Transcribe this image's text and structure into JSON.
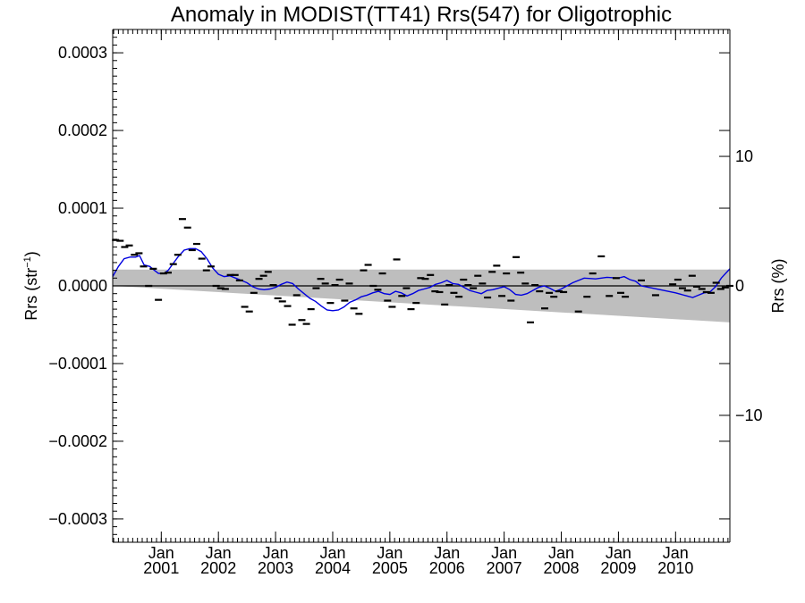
{
  "chart_data": {
    "type": "line",
    "title": "Anomaly in MODIST(TT41) Rrs(547) for Oligotrophic",
    "ylabel": "Rrs (str",
    "ylabel_sup": "−1",
    "ylabel_close": ")",
    "y2label": "Rrs (%)",
    "xlim": [
      2000.15,
      2010.95
    ],
    "ylim": [
      -0.00033,
      0.00033
    ],
    "y2lim": [
      -19.8,
      19.8
    ],
    "yticks": [
      {
        "value": 0.0003,
        "label": "0.0003"
      },
      {
        "value": 0.0002,
        "label": "0.0002"
      },
      {
        "value": 0.0001,
        "label": "0.0001"
      },
      {
        "value": 0.0,
        "label": "0.0000"
      },
      {
        "value": -0.0001,
        "label": "−0.0001"
      },
      {
        "value": -0.0002,
        "label": "−0.0002"
      },
      {
        "value": -0.0003,
        "label": "−0.0003"
      }
    ],
    "y2ticks": [
      {
        "value": 10,
        "label": "10"
      },
      {
        "value": 0,
        "label": "0"
      },
      {
        "value": -10,
        "label": "−10"
      }
    ],
    "xticks": [
      {
        "value": 2001.0,
        "month": "Jan",
        "year": "2001"
      },
      {
        "value": 2002.0,
        "month": "Jan",
        "year": "2002"
      },
      {
        "value": 2003.0,
        "month": "Jan",
        "year": "2003"
      },
      {
        "value": 2004.0,
        "month": "Jan",
        "year": "2004"
      },
      {
        "value": 2005.0,
        "month": "Jan",
        "year": "2005"
      },
      {
        "value": 2006.0,
        "month": "Jan",
        "year": "2006"
      },
      {
        "value": 2007.0,
        "month": "Jan",
        "year": "2007"
      },
      {
        "value": 2008.0,
        "month": "Jan",
        "year": "2008"
      },
      {
        "value": 2009.0,
        "month": "Jan",
        "year": "2009"
      },
      {
        "value": 2010.0,
        "month": "Jan",
        "year": "2010"
      }
    ],
    "band": {
      "x": [
        2000.15,
        2010.95
      ],
      "upper": [
        2.1e-05,
        2.1e-05
      ],
      "lower": [
        0.0,
        -4.7e-05
      ]
    },
    "zero_line": 0,
    "grid": false,
    "legend": "none",
    "colors": {
      "series": "#0000e0",
      "band": "#bebebe",
      "markers": "#000000"
    },
    "series": [
      {
        "type": "line",
        "x": [
          2000.15,
          2000.25,
          2000.35,
          2000.45,
          2000.55,
          2000.62,
          2000.7,
          2000.8,
          2000.88,
          2000.95,
          2001.05,
          2001.12,
          2001.2,
          2001.3,
          2001.4,
          2001.5,
          2001.6,
          2001.7,
          2001.8,
          2001.9,
          2002.0,
          2002.1,
          2002.2,
          2002.3,
          2002.4,
          2002.5,
          2002.6,
          2002.7,
          2002.8,
          2002.9,
          2003.0,
          2003.1,
          2003.2,
          2003.3,
          2003.4,
          2003.5,
          2003.6,
          2003.7,
          2003.8,
          2003.9,
          2004.0,
          2004.1,
          2004.2,
          2004.3,
          2004.4,
          2004.5,
          2004.6,
          2004.7,
          2004.8,
          2004.9,
          2005.0,
          2005.1,
          2005.2,
          2005.3,
          2005.4,
          2005.5,
          2005.6,
          2005.7,
          2005.8,
          2005.9,
          2006.0,
          2006.1,
          2006.2,
          2006.3,
          2006.4,
          2006.5,
          2006.6,
          2006.7,
          2006.8,
          2006.9,
          2007.0,
          2007.1,
          2007.2,
          2007.3,
          2007.4,
          2007.5,
          2007.6,
          2007.7,
          2007.8,
          2007.9,
          2008.0,
          2008.2,
          2008.4,
          2008.6,
          2008.8,
          2009.0,
          2009.1,
          2009.2,
          2009.3,
          2009.4,
          2009.6,
          2009.8,
          2010.0,
          2010.1,
          2010.2,
          2010.3,
          2010.4,
          2010.5,
          2010.6,
          2010.7,
          2010.8,
          2010.95
        ],
        "y": [
          1.2e-05,
          2.5e-05,
          3.5e-05,
          3.7e-05,
          3.7e-05,
          3.9e-05,
          2.7e-05,
          2.5e-05,
          2e-05,
          1.6e-05,
          1.6e-05,
          2e-05,
          2.8e-05,
          3.8e-05,
          4.6e-05,
          4.8e-05,
          4.8e-05,
          4.4e-05,
          3.5e-05,
          2.3e-05,
          1.5e-05,
          1.2e-05,
          1.3e-05,
          1e-05,
          7e-06,
          4e-06,
          -1e-06,
          -4e-06,
          -5e-06,
          -4e-06,
          -2e-06,
          2e-06,
          5e-06,
          3e-06,
          -4e-06,
          -1e-05,
          -1.6e-05,
          -2e-05,
          -2.6e-05,
          -3.1e-05,
          -3.2e-05,
          -3.1e-05,
          -2.7e-05,
          -2.1e-05,
          -1.8e-05,
          -1.4e-05,
          -1.2e-05,
          -9e-06,
          -7e-06,
          -1e-05,
          -1.1e-05,
          -7e-06,
          -9e-06,
          -1.3e-05,
          -1e-05,
          -6e-06,
          -4e-06,
          -2e-06,
          2e-06,
          4e-06,
          7e-06,
          3e-06,
          2e-06,
          -2e-06,
          -6e-06,
          -8e-06,
          -1e-05,
          -6e-06,
          -5e-06,
          -3e-06,
          -1e-06,
          -5e-06,
          -1.1e-05,
          -1.2e-05,
          -1e-05,
          -6e-06,
          -2e-06,
          0.0,
          -3e-06,
          -7e-06,
          -4e-06,
          4e-06,
          1e-05,
          9e-06,
          1.1e-05,
          1e-05,
          1.2e-05,
          8e-06,
          6e-06,
          0.0,
          -3e-06,
          -6e-06,
          -9e-06,
          -1.1e-05,
          -1.3e-05,
          -1.5e-05,
          -1.2e-05,
          -9e-06,
          -8e-06,
          -1e-06,
          1e-05,
          2.2e-05
        ]
      },
      {
        "type": "scatter",
        "marker": "dash",
        "x": [
          2000.2,
          2000.28,
          2000.36,
          2000.44,
          2000.53,
          2000.61,
          2000.69,
          2000.78,
          2000.86,
          2000.95,
          2001.04,
          2001.12,
          2001.21,
          2001.29,
          2001.37,
          2001.46,
          2001.54,
          2001.62,
          2001.71,
          2001.79,
          2001.87,
          2001.96,
          2002.04,
          2002.12,
          2002.21,
          2002.29,
          2002.37,
          2002.46,
          2002.54,
          2002.62,
          2002.71,
          2002.79,
          2002.87,
          2002.96,
          2003.04,
          2003.12,
          2003.21,
          2003.29,
          2003.37,
          2003.46,
          2003.54,
          2003.62,
          2003.71,
          2003.79,
          2003.87,
          2003.96,
          2004.04,
          2004.12,
          2004.21,
          2004.29,
          2004.37,
          2004.46,
          2004.54,
          2004.62,
          2004.71,
          2004.79,
          2004.87,
          2004.96,
          2005.04,
          2005.12,
          2005.21,
          2005.29,
          2005.37,
          2005.46,
          2005.54,
          2005.62,
          2005.71,
          2005.79,
          2005.87,
          2005.96,
          2006.04,
          2006.12,
          2006.21,
          2006.29,
          2006.37,
          2006.46,
          2006.54,
          2006.62,
          2006.71,
          2006.79,
          2006.87,
          2006.96,
          2007.04,
          2007.12,
          2007.21,
          2007.29,
          2007.37,
          2007.46,
          2007.54,
          2007.62,
          2007.71,
          2007.79,
          2007.87,
          2007.96,
          2008.04,
          2008.3,
          2008.45,
          2008.55,
          2008.7,
          2008.84,
          2008.96,
          2009.04,
          2009.12,
          2009.4,
          2009.65,
          2009.95,
          2010.04,
          2010.12,
          2010.21,
          2010.29,
          2010.37,
          2010.46,
          2010.54,
          2010.62,
          2010.71,
          2010.79,
          2010.87,
          2010.95
        ],
        "y": [
          5.9e-05,
          5.8e-05,
          5e-05,
          5.2e-05,
          4e-05,
          4.2e-05,
          2.5e-05,
          0.0,
          2.2e-05,
          -1.8e-05,
          1.6e-05,
          1.7e-05,
          2.8e-05,
          4e-05,
          8.6e-05,
          7.5e-05,
          4.6e-05,
          5.4e-05,
          3.5e-05,
          2e-05,
          2.5e-05,
          0.0,
          -3e-06,
          -4e-06,
          1.4e-05,
          1.4e-05,
          7e-06,
          -2.7e-05,
          -3.3e-05,
          -9e-06,
          9e-06,
          1.3e-05,
          1.8e-05,
          1e-06,
          -1.6e-05,
          -2e-05,
          -2.6e-05,
          -5e-05,
          -1.2e-05,
          -4.4e-05,
          -4.9e-05,
          -3e-05,
          -3e-06,
          9e-06,
          3e-06,
          -2.2e-05,
          1e-06,
          8e-06,
          -1.9e-05,
          3e-06,
          -2.9e-05,
          -3.6e-05,
          2e-05,
          2.7e-05,
          0.0,
          -5e-06,
          1.6e-05,
          -1.9e-05,
          -2.7e-05,
          3.4e-05,
          -1.3e-05,
          -3e-06,
          -3e-05,
          -2.2e-05,
          1e-05,
          9e-06,
          1.4e-05,
          -7e-06,
          -8e-06,
          -2.4e-05,
          1e-06,
          -9e-06,
          -1.4e-05,
          8e-06,
          1e-06,
          -3e-06,
          1.3e-05,
          3e-06,
          -1.5e-05,
          1.8e-05,
          2.6e-05,
          -1.3e-05,
          1.6e-05,
          -1.9e-05,
          3.7e-05,
          1.7e-05,
          3e-06,
          -4.7e-05,
          1e-06,
          -7e-06,
          -2.9e-05,
          -9e-06,
          -1.4e-05,
          -7e-06,
          -8e-06,
          -3.3e-05,
          -1.4e-05,
          1.6e-05,
          3.8e-05,
          -1.3e-05,
          1e-05,
          -9e-06,
          -1.4e-05,
          7e-06,
          -1.2e-05,
          2e-06,
          8e-06,
          -3e-06,
          -6e-06,
          1.3e-05,
          -1e-06,
          -4e-06,
          -8e-06,
          -9e-06,
          4e-06,
          -4e-06,
          -2e-06,
          0.0
        ]
      }
    ]
  }
}
